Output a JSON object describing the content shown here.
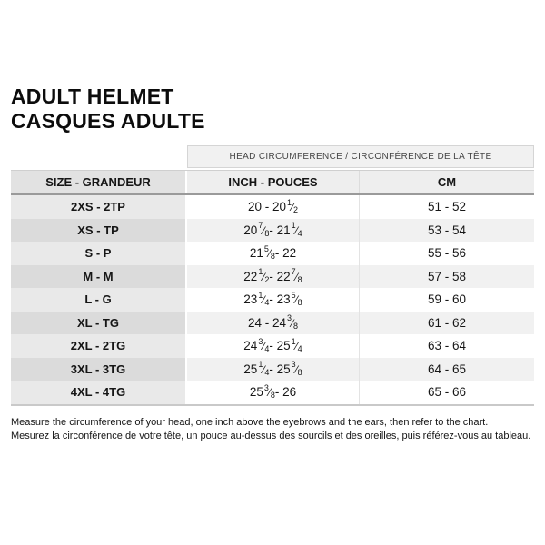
{
  "page": {
    "title_line1": "ADULT HELMET",
    "title_line2": "CASQUES ADULTE"
  },
  "table": {
    "group_header": "HEAD CIRCUMFERENCE / CIRCONFÉRENCE DE LA TÊTE",
    "columns": [
      "SIZE - GRANDEUR",
      "INCH - POUCES",
      "CM"
    ],
    "rows": [
      {
        "size": "2XS - 2TP",
        "inch": "20 - 20 1/2",
        "cm": "51 - 52"
      },
      {
        "size": "XS - TP",
        "inch": "20 7/8 - 21 1/4",
        "cm": "53 - 54"
      },
      {
        "size": "S - P",
        "inch": "21 5/8 - 22",
        "cm": "55 - 56"
      },
      {
        "size": "M - M",
        "inch": "22 1/2 - 22 7/8",
        "cm": "57 - 58"
      },
      {
        "size": "L - G",
        "inch": "23 1/4 - 23 5/8",
        "cm": "59 - 60"
      },
      {
        "size": "XL - TG",
        "inch": "24 - 24 3/8",
        "cm": "61 - 62"
      },
      {
        "size": "2XL - 2TG",
        "inch": "24 3/4 - 25 1/4",
        "cm": "63 - 64"
      },
      {
        "size": "3XL - 3TG",
        "inch": "25 1/4 - 25 3/8",
        "cm": "64 - 65"
      },
      {
        "size": "4XL - 4TG",
        "inch": "25 3/8 - 26",
        "cm": "65 - 66"
      }
    ]
  },
  "footer": {
    "line_en": "Measure the circumference of your head, one inch above the eyebrows and the ears, then refer to the chart.",
    "line_fr": "Mesurez la circonférence de votre tête, un pouce au-dessus des sourcils et des oreilles, puis référez-vous au tableau."
  },
  "colors": {
    "box_bg": "#f1f1f1",
    "box_border": "#d5d5d5",
    "header_size_bg": "#e2e2e2",
    "header_data_bg": "#eeeeee",
    "header_rule": "#9a9a9a",
    "row_odd_size_bg": "#e9e9e9",
    "row_even_size_bg": "#dbdbdb",
    "row_even_data_bg": "#f1f1f1",
    "table_bottom_rule": "#c9c9c9"
  }
}
